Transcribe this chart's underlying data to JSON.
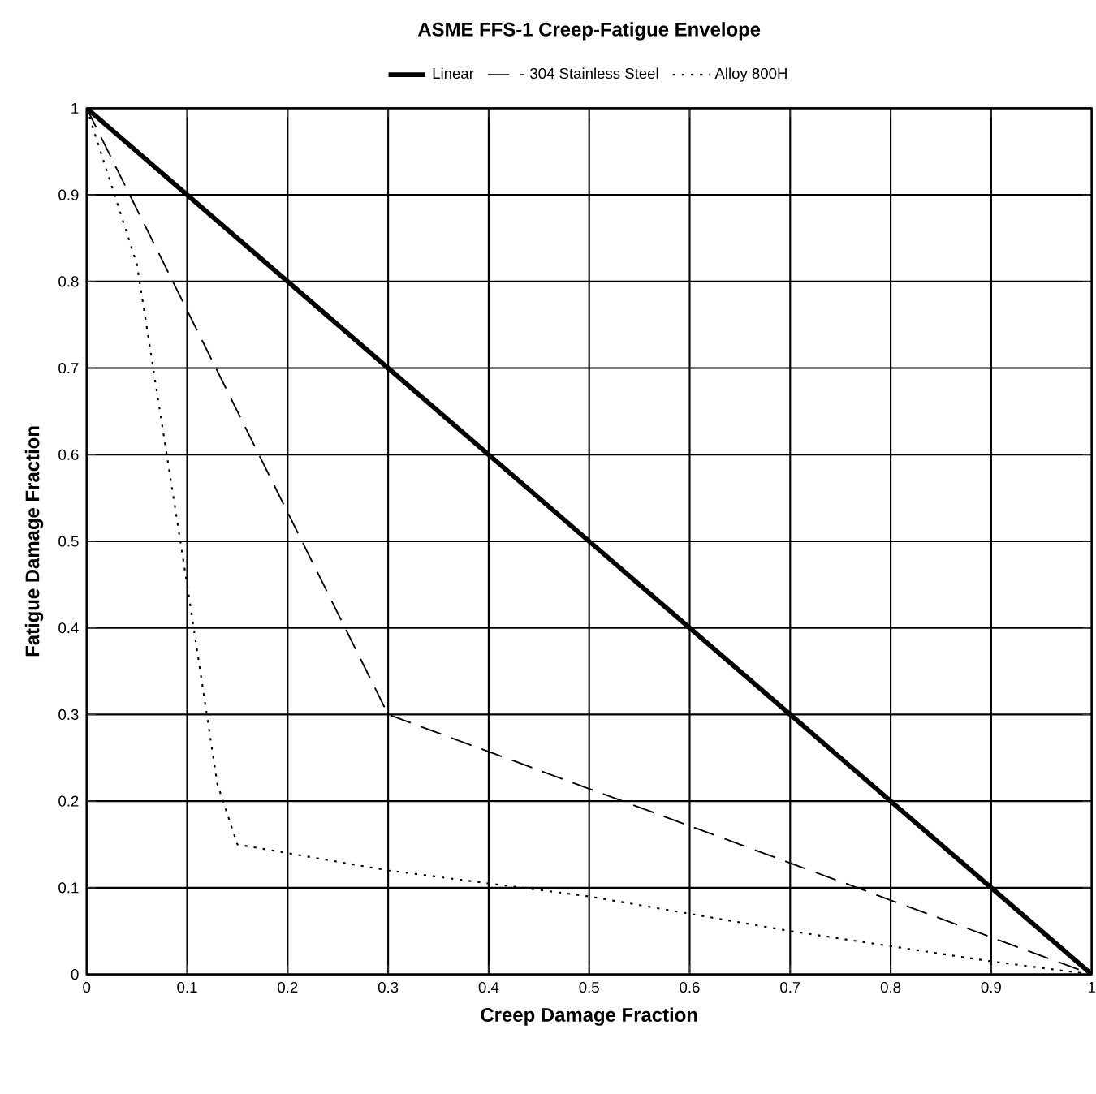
{
  "chart_data": {
    "type": "line",
    "title": "ASME FFS-1 Creep-Fatigue Envelope",
    "xlabel": "Creep Damage Fraction",
    "ylabel": "Fatigue Damage Fraction",
    "series": [
      {
        "name": "Linear",
        "color": "#000000",
        "line_style": "solid",
        "x": [
          0,
          1
        ],
        "values": [
          1,
          0
        ]
      },
      {
        "name": "304 Stainless Steel",
        "color": "#000000",
        "line_style": "dashed",
        "x": [
          0,
          0.3,
          1
        ],
        "values": [
          1,
          0.3,
          0
        ]
      },
      {
        "name": "Alloy 800H",
        "color": "#000000",
        "line_style": "dotted",
        "x": [
          0,
          0.05,
          0.1,
          0.13,
          0.15,
          0.2,
          0.3,
          0.5,
          0.7,
          0.9,
          1
        ],
        "values": [
          1,
          0.82,
          0.45,
          0.22,
          0.15,
          0.14,
          0.12,
          0.09,
          0.05,
          0.015,
          0
        ]
      }
    ],
    "xlim": [
      0,
      1
    ],
    "ylim": [
      0,
      1
    ],
    "xticks": [
      0,
      0.1,
      0.2,
      0.3,
      0.4,
      0.5,
      0.6,
      0.7,
      0.8,
      0.9,
      1
    ],
    "yticks": [
      0,
      0.1,
      0.2,
      0.3,
      0.4,
      0.5,
      0.6,
      0.7,
      0.8,
      0.9,
      1
    ],
    "grid": true,
    "legend": "top",
    "marker": "none"
  }
}
